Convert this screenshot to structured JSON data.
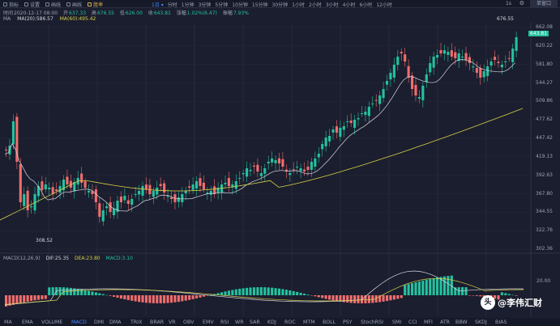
{
  "toolbar": {
    "items": [
      {
        "label": "指标",
        "icon": "indicator-icon"
      },
      {
        "label": "设置",
        "icon": "gear-icon"
      },
      {
        "label": "画线",
        "icon": "pencil-icon"
      },
      {
        "label": "画线",
        "icon": "draw-icon"
      },
      {
        "label": "胜率",
        "icon": "winrate-icon"
      }
    ],
    "periods": [
      "1日 ▾",
      "分时",
      "1分钟",
      "3分钟",
      "5分钟",
      "10分钟",
      "15分钟",
      "30分钟",
      "1小时",
      "2小时",
      "3小时",
      "4小时",
      "6小时",
      "12小时"
    ],
    "active_period": 0,
    "interval_label": "1s",
    "dropdown_label": "单窗口"
  },
  "ohlc": {
    "time_label": "时间",
    "time": "2020-12-17 08:00",
    "open_label": "开",
    "open": "637.33",
    "high_label": "高",
    "high": "676.55",
    "low_label": "低",
    "low": "626.00",
    "close_label": "收",
    "close": "643.81",
    "change_label": "涨幅",
    "change": "1.02%(6.47)",
    "amp_label": "振幅",
    "amp": "7.93%"
  },
  "ma": {
    "label": "MA",
    "ma20": "MA(20):586.57",
    "ma60": "MA(60):495.42",
    "colors": {
      "ma20": "#d6d6e0",
      "ma60": "#d8d24a"
    }
  },
  "macd": {
    "label": "MACD(12,26,9)",
    "dif": "DIF:25.35",
    "dea": "DEA:23.80",
    "macd": "MACD:3.10",
    "colors": {
      "dif": "#d6d6e0",
      "dea": "#d8d24a",
      "macd": "#23c2a0"
    }
  },
  "yaxis": {
    "labels": [
      "662.08",
      "620.22",
      "581.80",
      "544.27",
      "509.86",
      "477.62",
      "447.42",
      "419.13",
      "392.63",
      "367.80",
      "344.55",
      "322.76",
      "302.36"
    ],
    "macd_label": "20.00",
    "current_tag": "643.81",
    "high_tag": "676.55",
    "low_tag": "308.52"
  },
  "bottom_tabs": [
    "MA",
    "EMA",
    "VOLUME",
    "MACD",
    "DMI",
    "DMA",
    "TRIX",
    "BRAR",
    "VR",
    "OBV",
    "EMV",
    "RSI",
    "WR",
    "SAR",
    "KDJ",
    "ROC",
    "MTM",
    "BOLL",
    "PSY",
    "StochRSI",
    "SMI",
    "CCI",
    "MFI",
    "ATR",
    "BBW",
    "SKDJ",
    "BIAS"
  ],
  "active_tab": 3,
  "watermark": {
    "logo": "头",
    "text": "@李伟汇财"
  },
  "colors": {
    "up": "#23c2a0",
    "down": "#f26d6d",
    "bg": "#1b1e2e",
    "grid": "#262a3c",
    "accent": "#4a8cff"
  },
  "chart_data": {
    "type": "candlestick",
    "ylim": [
      302.36,
      676.55
    ],
    "scale": "log",
    "indicators": [
      "MA(20)",
      "MA(60)",
      "MACD(12,26,9)"
    ]
  }
}
